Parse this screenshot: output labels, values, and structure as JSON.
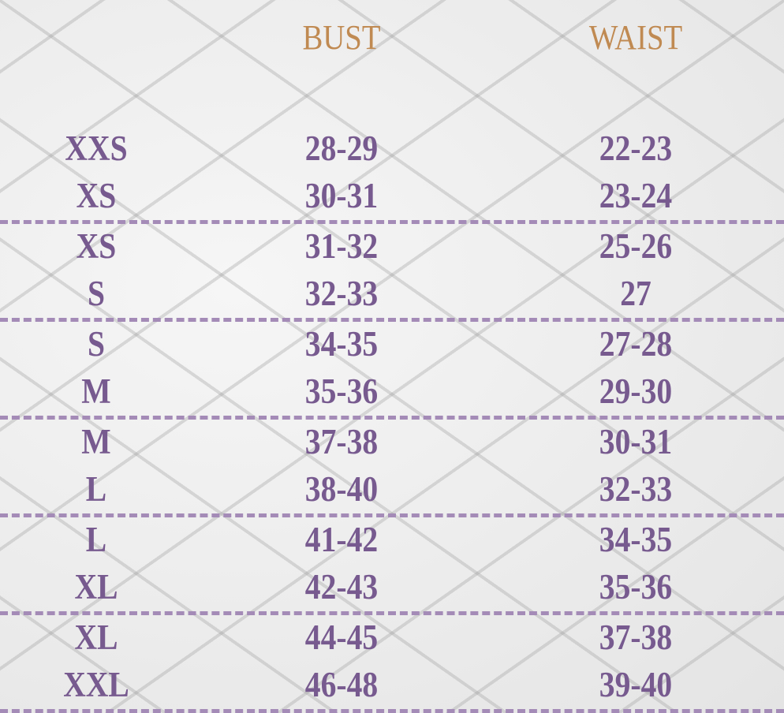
{
  "headers": {
    "size": "",
    "bust": "BUST",
    "waist": "WAIST"
  },
  "colors": {
    "header": "#c08a52",
    "text": "#775a8f",
    "divider": "#a48bb7"
  },
  "rows": [
    {
      "size": "XXS",
      "bust": "28-29",
      "waist": "22-23"
    },
    {
      "size": "XS",
      "bust": "30-31",
      "waist": "23-24"
    },
    {
      "size": "XS",
      "bust": "31-32",
      "waist": "25-26"
    },
    {
      "size": "S",
      "bust": "32-33",
      "waist": "27"
    },
    {
      "size": "S",
      "bust": "34-35",
      "waist": "27-28"
    },
    {
      "size": "M",
      "bust": "35-36",
      "waist": "29-30"
    },
    {
      "size": "M",
      "bust": "37-38",
      "waist": "30-31"
    },
    {
      "size": "L",
      "bust": "38-40",
      "waist": "32-33"
    },
    {
      "size": "L",
      "bust": "41-42",
      "waist": "34-35"
    },
    {
      "size": "XL",
      "bust": "42-43",
      "waist": "35-36"
    },
    {
      "size": "XL",
      "bust": "44-45",
      "waist": "37-38"
    },
    {
      "size": "XXL",
      "bust": "46-48",
      "waist": "39-40"
    }
  ]
}
